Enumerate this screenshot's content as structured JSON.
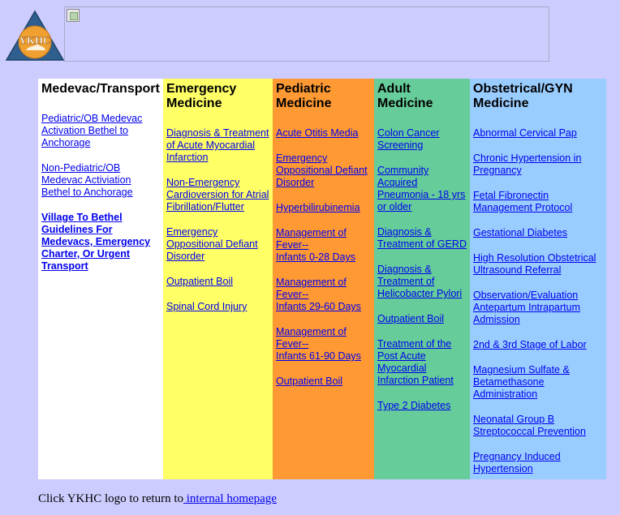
{
  "logo": {
    "text": "YKHC"
  },
  "columns": [
    {
      "title": "Medevac/Transport",
      "links": [
        {
          "text": "Pediatric/OB Medevac Activation Bethel to Anchorage",
          "bold": false
        },
        {
          "text": "Non-Pediatric/OB Medevac Activiation Bethel to Anchorage",
          "bold": false
        },
        {
          "text": "Village To Bethel Guidelines For Medevacs, Emergency Charter, Or Urgent Transport",
          "bold": true
        }
      ]
    },
    {
      "title": "Emergency Medicine",
      "links": [
        {
          "text": "Diagnosis & Treatment of Acute Myocardial Infarction"
        },
        {
          "text": "Non-Emergency Cardioversion for Atrial Fibrillation/Flutter"
        },
        {
          "text": "Emergency Oppositional Defiant Disorder"
        },
        {
          "text": "Outpatient Boil"
        },
        {
          "text": "Spinal Cord Injury"
        }
      ]
    },
    {
      "title": "Pediatric Medicine",
      "links": [
        {
          "text": "Acute Otitis Media"
        },
        {
          "text": "Emergency Oppositional Defiant Disorder"
        },
        {
          "text": "Hyperbilirubinemia"
        },
        {
          "text": "Management of Fever--\nInfants 0-28 Days"
        },
        {
          "text": "Management of Fever--\nInfants 29-60 Days"
        },
        {
          "text": "Management of Fever--\nInfants 61-90 Days"
        },
        {
          "text": "Outpatient Boil"
        }
      ]
    },
    {
      "title": "Adult Medicine",
      "links": [
        {
          "text": "Colon Cancer Screening"
        },
        {
          "text": "Community Acquired Pneumonia - 18 yrs or older"
        },
        {
          "text": "Diagnosis & Treatment of GERD"
        },
        {
          "text": "Diagnosis & Treatment of Helicobacter Pylori"
        },
        {
          "text": "Outpatient Boil"
        },
        {
          "text": "Treatment of the Post Acute Myocardial Infarction Patient"
        },
        {
          "text": "Type 2 Diabetes"
        }
      ]
    },
    {
      "title": "Obstetrical/GYN Medicine",
      "links": [
        {
          "text": "Abnormal Cervical Pap"
        },
        {
          "text": "Chronic Hypertension in Pregnancy"
        },
        {
          "text": "Fetal Fibronectin Management Protocol"
        },
        {
          "text": "Gestational Diabetes"
        },
        {
          "text": "High Resolution Obstetrical Ultrasound Referral"
        },
        {
          "text": "Observation/Evaluation Antepartum Intrapartum Admission"
        },
        {
          "text": "2nd & 3rd Stage of Labor"
        },
        {
          "text": "Magnesium Sulfate & Betamethasone Administration"
        },
        {
          "text": "Neonatal Group B Streptococcal Prevention"
        },
        {
          "text": "Pregnancy Induced Hypertension"
        }
      ]
    }
  ],
  "footer": {
    "text": "Click YKHC logo to return to",
    "link": " internal homepage"
  }
}
